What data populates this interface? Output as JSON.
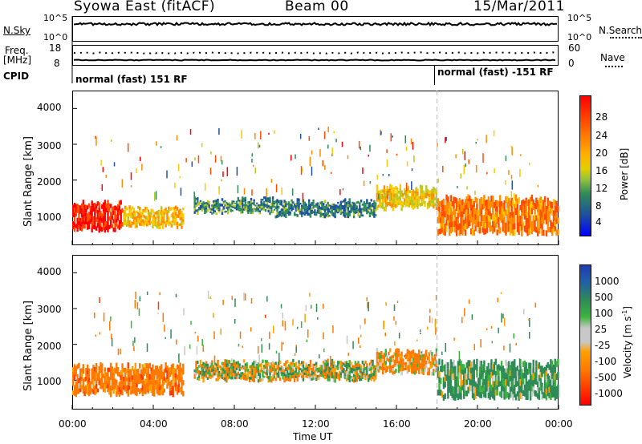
{
  "header": {
    "station": "Syowa East (fitACF)",
    "beam": "Beam 00",
    "date": "15/Mar/2011"
  },
  "top_panels": {
    "nsky_label": "N.Sky",
    "nsky_ticks": [
      "10^5",
      "10^0"
    ],
    "nsearch_label": "N.Search",
    "nsearch_ticks": [
      "10^5",
      "10^0"
    ],
    "freq_label_line1": "Freq.",
    "freq_label_line2": "[MHz]",
    "freq_ticks": [
      "18",
      "8"
    ],
    "nave_label": "Nave",
    "nave_ticks": [
      "60",
      "0"
    ],
    "cpid_label": "CPID",
    "cpid_segments": [
      {
        "text": "normal (fast) 151 RF",
        "start": "00:00"
      },
      {
        "text": "normal (fast) -151 RF",
        "start": "18:00"
      }
    ]
  },
  "x_axis": {
    "label": "Time UT",
    "ticks": [
      "00:00",
      "04:00",
      "08:00",
      "12:00",
      "16:00",
      "20:00",
      "00:00"
    ]
  },
  "y_axis": {
    "label": "Slant Range [km]",
    "ticks": [
      "4000",
      "3000",
      "2000",
      "1000"
    ]
  },
  "power_colorbar": {
    "label": "Power [dB]",
    "ticks": [
      "28",
      "24",
      "20",
      "16",
      "12",
      "8",
      "4"
    ],
    "colors": [
      "#ff0000",
      "#ff4d00",
      "#ff8c00",
      "#ffc800",
      "#b8c820",
      "#2e8b57",
      "#1e50a0",
      "#0000ff"
    ]
  },
  "velocity_colorbar": {
    "label": "Velocity [m s",
    "label_sup": "-1",
    "label_end": "]",
    "ticks": [
      "1000",
      "500",
      "100",
      "25",
      "-25",
      "-100",
      "-500",
      "-1000"
    ],
    "colors": [
      "#1e3cb4",
      "#2060a8",
      "#2e8b57",
      "#3cb43c",
      "#c8c8c8",
      "#ffa000",
      "#ff7800",
      "#ff3c00",
      "#ff0000"
    ]
  },
  "chart_data": {
    "type": "heatmap",
    "x_range_hours": [
      0,
      24
    ],
    "y_range_km": [
      180,
      4500
    ],
    "panels": [
      {
        "name": "Power",
        "units": "dB",
        "range": [
          0,
          30
        ],
        "echo_regions": [
          {
            "t_start": 0.0,
            "t_end": 2.5,
            "r_low": 600,
            "r_high": 1350,
            "value": 27
          },
          {
            "t_start": 2.5,
            "t_end": 5.5,
            "r_low": 700,
            "r_high": 1200,
            "value": 18
          },
          {
            "t_start": 6.0,
            "t_end": 10.0,
            "r_low": 1100,
            "r_high": 1450,
            "value": 9
          },
          {
            "t_start": 10.0,
            "t_end": 15.0,
            "r_low": 1000,
            "r_high": 1400,
            "value": 8
          },
          {
            "t_start": 15.0,
            "t_end": 18.0,
            "r_low": 1200,
            "r_high": 1800,
            "value": 16
          },
          {
            "t_start": 18.0,
            "t_end": 24.0,
            "r_low": 500,
            "r_high": 1500,
            "value": 22
          }
        ]
      },
      {
        "name": "Velocity",
        "units": "m s-1",
        "range": [
          -1000,
          1000
        ],
        "echo_regions": [
          {
            "t_start": 0.0,
            "t_end": 5.5,
            "r_low": 600,
            "r_high": 1400,
            "value": -300
          },
          {
            "t_start": 6.0,
            "t_end": 15.0,
            "r_low": 1000,
            "r_high": 1500,
            "value": 0
          },
          {
            "t_start": 15.0,
            "t_end": 18.0,
            "r_low": 1200,
            "r_high": 1800,
            "value": -150
          },
          {
            "t_start": 18.0,
            "t_end": 24.0,
            "r_low": 500,
            "r_high": 1500,
            "value": 200
          }
        ]
      }
    ]
  }
}
